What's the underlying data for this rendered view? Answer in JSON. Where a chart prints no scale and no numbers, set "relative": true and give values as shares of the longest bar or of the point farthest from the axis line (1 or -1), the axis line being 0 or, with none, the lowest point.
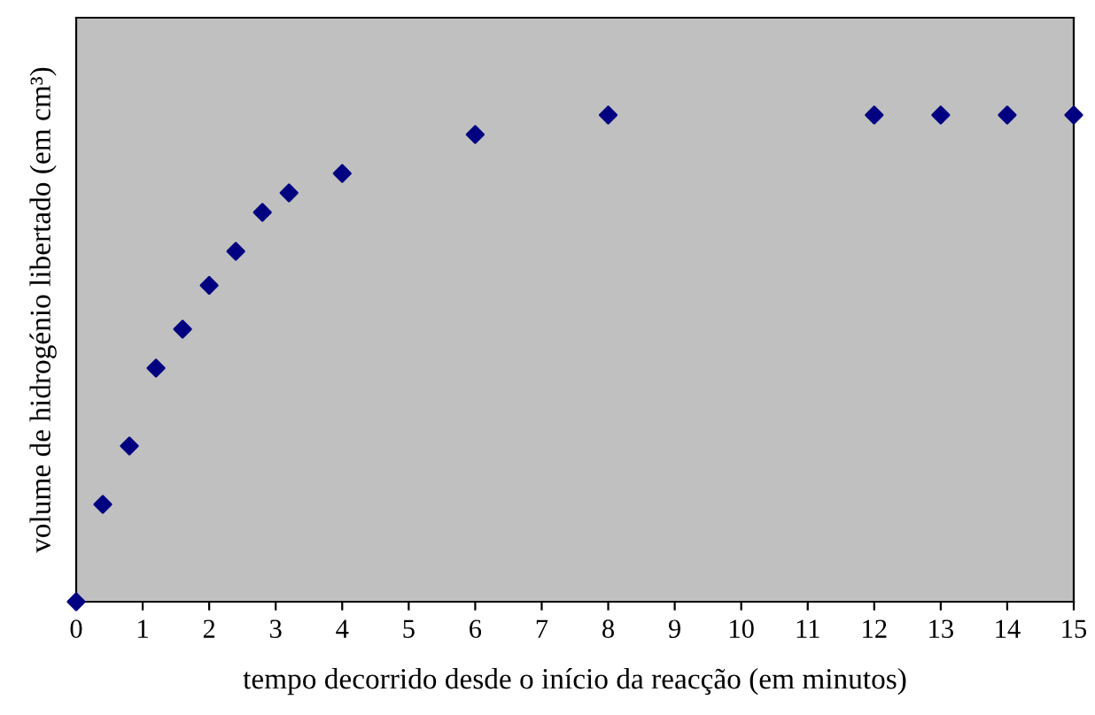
{
  "chart_data": {
    "type": "scatter",
    "xlabel": "tempo decorrido desde o início da reacção (em minutos)",
    "ylabel": "volume de hidrogénio libertado (em cm³)",
    "x": [
      0,
      0.4,
      0.8,
      1.2,
      1.6,
      2.0,
      2.4,
      2.8,
      3.2,
      4,
      6,
      8,
      12,
      13,
      14,
      15
    ],
    "series": [
      {
        "color": "#000080",
        "values": [
          0,
          0.2,
          0.32,
          0.48,
          0.56,
          0.65,
          0.72,
          0.8,
          0.84,
          0.88,
          0.96,
          1,
          1,
          1,
          1,
          1
        ]
      }
    ],
    "relative": true,
    "xlim": [
      0,
      15
    ],
    "xticks": [
      0,
      1,
      2,
      3,
      4,
      5,
      6,
      7,
      8,
      9,
      10,
      11,
      12,
      13,
      14,
      15
    ],
    "marker": "diamond",
    "grid": false,
    "legend": false
  }
}
